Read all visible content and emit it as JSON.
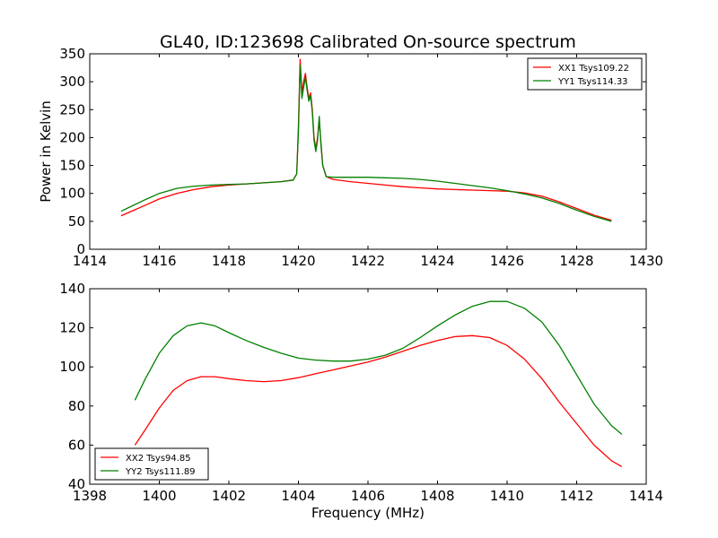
{
  "chart_data": [
    {
      "type": "line",
      "title": "GL40, ID:123698 Calibrated On-source spectrum",
      "xlabel": "",
      "ylabel": "Power in Kelvin",
      "xlim": [
        1414,
        1430
      ],
      "ylim": [
        0,
        350
      ],
      "xticks": [
        1414,
        1416,
        1418,
        1420,
        1422,
        1424,
        1426,
        1428,
        1430
      ],
      "yticks": [
        0,
        50,
        100,
        150,
        200,
        250,
        300,
        350
      ],
      "legend": "top-right",
      "series": [
        {
          "name": "XX1 Tsys109.22",
          "color": "#ff0000",
          "x": [
            1414.9,
            1415.2,
            1415.6,
            1416.0,
            1416.5,
            1417.0,
            1417.5,
            1418.0,
            1418.5,
            1419.0,
            1419.5,
            1419.85,
            1419.95,
            1420.0,
            1420.05,
            1420.1,
            1420.15,
            1420.2,
            1420.25,
            1420.3,
            1420.35,
            1420.4,
            1420.45,
            1420.5,
            1420.55,
            1420.6,
            1420.65,
            1420.7,
            1420.8,
            1421.0,
            1421.5,
            1422.0,
            1422.5,
            1423.0,
            1423.5,
            1424.0,
            1424.5,
            1425.0,
            1425.5,
            1426.0,
            1426.5,
            1427.0,
            1427.5,
            1428.0,
            1428.5,
            1429.0
          ],
          "y": [
            60,
            68,
            79,
            90,
            100,
            107,
            112,
            115,
            117,
            119,
            121,
            124,
            135,
            220,
            340,
            280,
            300,
            315,
            290,
            270,
            280,
            250,
            200,
            180,
            200,
            230,
            190,
            150,
            130,
            125,
            121,
            118,
            115,
            112,
            110,
            108,
            107,
            106,
            105,
            104,
            101,
            95,
            85,
            73,
            61,
            52
          ]
        },
        {
          "name": "YY1 Tsys114.33",
          "color": "#008000",
          "x": [
            1414.9,
            1415.2,
            1415.6,
            1416.0,
            1416.5,
            1417.0,
            1417.5,
            1418.0,
            1418.5,
            1419.0,
            1419.5,
            1419.85,
            1419.95,
            1420.0,
            1420.05,
            1420.1,
            1420.15,
            1420.2,
            1420.25,
            1420.3,
            1420.35,
            1420.4,
            1420.45,
            1420.5,
            1420.55,
            1420.6,
            1420.65,
            1420.7,
            1420.8,
            1421.0,
            1421.5,
            1422.0,
            1422.5,
            1423.0,
            1423.5,
            1424.0,
            1424.5,
            1425.0,
            1425.5,
            1426.0,
            1426.5,
            1427.0,
            1427.5,
            1428.0,
            1428.5,
            1429.0
          ],
          "y": [
            68,
            77,
            89,
            100,
            109,
            113,
            115,
            116,
            117,
            119,
            121,
            124,
            135,
            210,
            330,
            270,
            290,
            308,
            285,
            265,
            275,
            245,
            195,
            175,
            195,
            238,
            185,
            150,
            130,
            129,
            129,
            129,
            128,
            127,
            125,
            122,
            118,
            114,
            110,
            105,
            99,
            92,
            82,
            70,
            59,
            50
          ]
        }
      ]
    },
    {
      "type": "line",
      "title": "",
      "xlabel": "Frequency (MHz)",
      "ylabel": "",
      "xlim": [
        1398,
        1414
      ],
      "ylim": [
        40,
        140
      ],
      "xticks": [
        1398,
        1400,
        1402,
        1404,
        1406,
        1408,
        1410,
        1412,
        1414
      ],
      "yticks": [
        40,
        60,
        80,
        100,
        120,
        140
      ],
      "legend": "bottom-left",
      "series": [
        {
          "name": "XX2 Tsys94.85",
          "color": "#ff0000",
          "x": [
            1399.3,
            1399.6,
            1400.0,
            1400.4,
            1400.8,
            1401.2,
            1401.6,
            1402.0,
            1402.5,
            1403.0,
            1403.5,
            1404.0,
            1404.5,
            1405.0,
            1405.5,
            1406.0,
            1406.5,
            1407.0,
            1407.5,
            1408.0,
            1408.5,
            1409.0,
            1409.5,
            1410.0,
            1410.5,
            1411.0,
            1411.5,
            1412.0,
            1412.5,
            1413.0,
            1413.3
          ],
          "y": [
            60,
            68,
            79,
            88,
            93,
            95,
            95,
            94,
            93,
            92.5,
            93,
            94.5,
            96.5,
            98.5,
            100.5,
            102.5,
            105,
            108,
            111,
            113.5,
            115.5,
            116,
            115,
            111,
            104,
            94,
            82,
            71,
            60,
            52,
            49
          ]
        },
        {
          "name": "YY2 Tsys111.89",
          "color": "#008000",
          "x": [
            1399.3,
            1399.6,
            1400.0,
            1400.4,
            1400.8,
            1401.2,
            1401.6,
            1402.0,
            1402.5,
            1403.0,
            1403.5,
            1404.0,
            1404.5,
            1405.0,
            1405.5,
            1406.0,
            1406.5,
            1407.0,
            1407.5,
            1408.0,
            1408.5,
            1409.0,
            1409.5,
            1410.0,
            1410.5,
            1411.0,
            1411.5,
            1412.0,
            1412.5,
            1413.0,
            1413.3
          ],
          "y": [
            83,
            94,
            107,
            116,
            121,
            122.5,
            121,
            117.5,
            113.5,
            110,
            107,
            104.5,
            103.5,
            103,
            103,
            104,
            106,
            109.5,
            115,
            121,
            126.5,
            131,
            133.5,
            133.5,
            130,
            123,
            111,
            96,
            81,
            70,
            65.5
          ]
        }
      ]
    }
  ]
}
